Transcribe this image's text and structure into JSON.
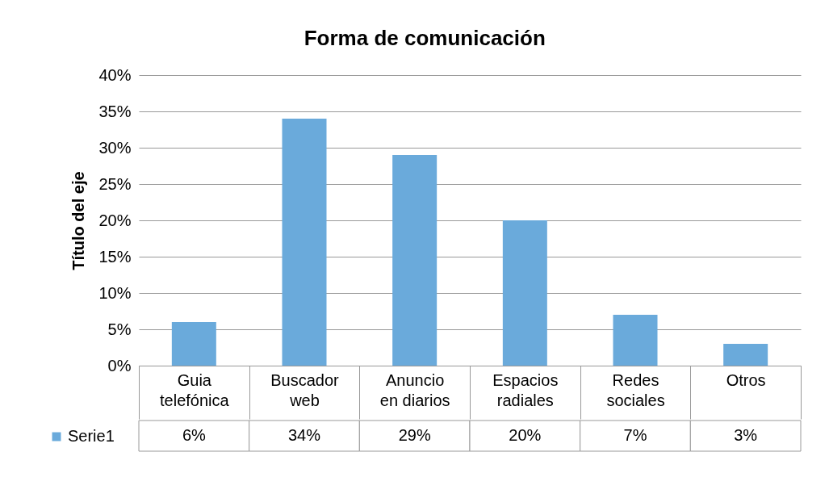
{
  "chart_data": {
    "type": "bar",
    "title": "Forma de comunicación",
    "ylabel": "Título del eje",
    "categories": [
      "Guia telefónica",
      "Buscador web",
      "Anuncio en diarios",
      "Espacios radiales",
      "Redes sociales",
      "Otros"
    ],
    "series": [
      {
        "name": "Serie1",
        "color": "#6aaadb",
        "values": [
          6,
          34,
          29,
          20,
          7,
          3
        ],
        "value_labels": [
          "6%",
          "34%",
          "29%",
          "20%",
          "7%",
          "3%"
        ]
      }
    ],
    "ylim": [
      0,
      40
    ],
    "yticks": [
      {
        "value": 0,
        "label": "0%"
      },
      {
        "value": 5,
        "label": "5%"
      },
      {
        "value": 10,
        "label": "10%"
      },
      {
        "value": 15,
        "label": "15%"
      },
      {
        "value": 20,
        "label": "20%"
      },
      {
        "value": 25,
        "label": "25%"
      },
      {
        "value": 30,
        "label": "30%"
      },
      {
        "value": 35,
        "label": "35%"
      },
      {
        "value": 40,
        "label": "40%"
      }
    ],
    "grid": "y",
    "legend": "bottom left"
  }
}
